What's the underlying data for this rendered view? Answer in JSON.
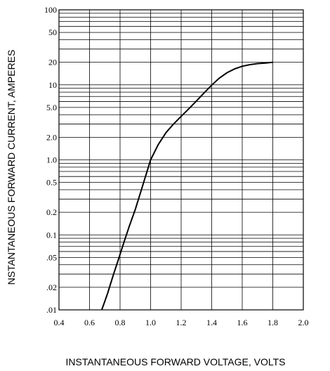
{
  "chart_data": {
    "type": "line",
    "title": "",
    "xlabel": "INSTANTANEOUS FORWARD VOLTAGE, VOLTS",
    "ylabel": "NSTANTANEOUS FORWARD CURRENT, AMPERES",
    "x_scale": "linear",
    "y_scale": "log",
    "xlim": [
      0.4,
      2.0
    ],
    "ylim": [
      0.01,
      100
    ],
    "grid": true,
    "x_ticks": [
      0.4,
      0.6,
      0.8,
      1.0,
      1.2,
      1.4,
      1.6,
      1.8,
      2.0
    ],
    "x_tick_labels": [
      "0.4",
      "0.6",
      "0.8",
      "1.0",
      "1.2",
      "1.4",
      "1.6",
      "1.8",
      "2.0"
    ],
    "y_ticks": [
      100,
      50,
      20,
      10,
      5,
      2,
      1,
      0.5,
      0.2,
      0.1,
      0.05,
      0.02,
      0.01
    ],
    "y_tick_labels": [
      "100",
      "50",
      "20",
      "10",
      "5.0",
      "2.0",
      "1.0",
      "0.5",
      "0.2",
      "0.1",
      ".05",
      ".02",
      ".01"
    ],
    "y_grid_values": [
      0.01,
      0.02,
      0.03,
      0.04,
      0.05,
      0.06,
      0.07,
      0.08,
      0.09,
      0.1,
      0.2,
      0.3,
      0.4,
      0.5,
      0.6,
      0.7,
      0.8,
      0.9,
      1,
      2,
      3,
      4,
      5,
      6,
      7,
      8,
      9,
      10,
      20,
      30,
      40,
      50,
      60,
      70,
      80,
      90,
      100
    ],
    "series": [
      {
        "x": [
          0.68,
          0.7,
          0.72,
          0.74,
          0.76,
          0.78,
          0.8,
          0.83,
          0.86,
          0.9,
          0.94,
          1.0,
          1.05,
          1.1,
          1.15,
          1.2,
          1.25,
          1.3,
          1.35,
          1.4,
          1.45,
          1.5,
          1.55,
          1.6,
          1.65,
          1.7,
          1.75,
          1.8
        ],
        "y": [
          0.01,
          0.013,
          0.017,
          0.023,
          0.031,
          0.041,
          0.055,
          0.085,
          0.13,
          0.22,
          0.4,
          1.0,
          1.6,
          2.3,
          3.0,
          3.8,
          4.8,
          6.1,
          7.8,
          9.9,
          12.3,
          14.5,
          16.3,
          17.7,
          18.6,
          19.2,
          19.5,
          20.0
        ]
      }
    ]
  }
}
